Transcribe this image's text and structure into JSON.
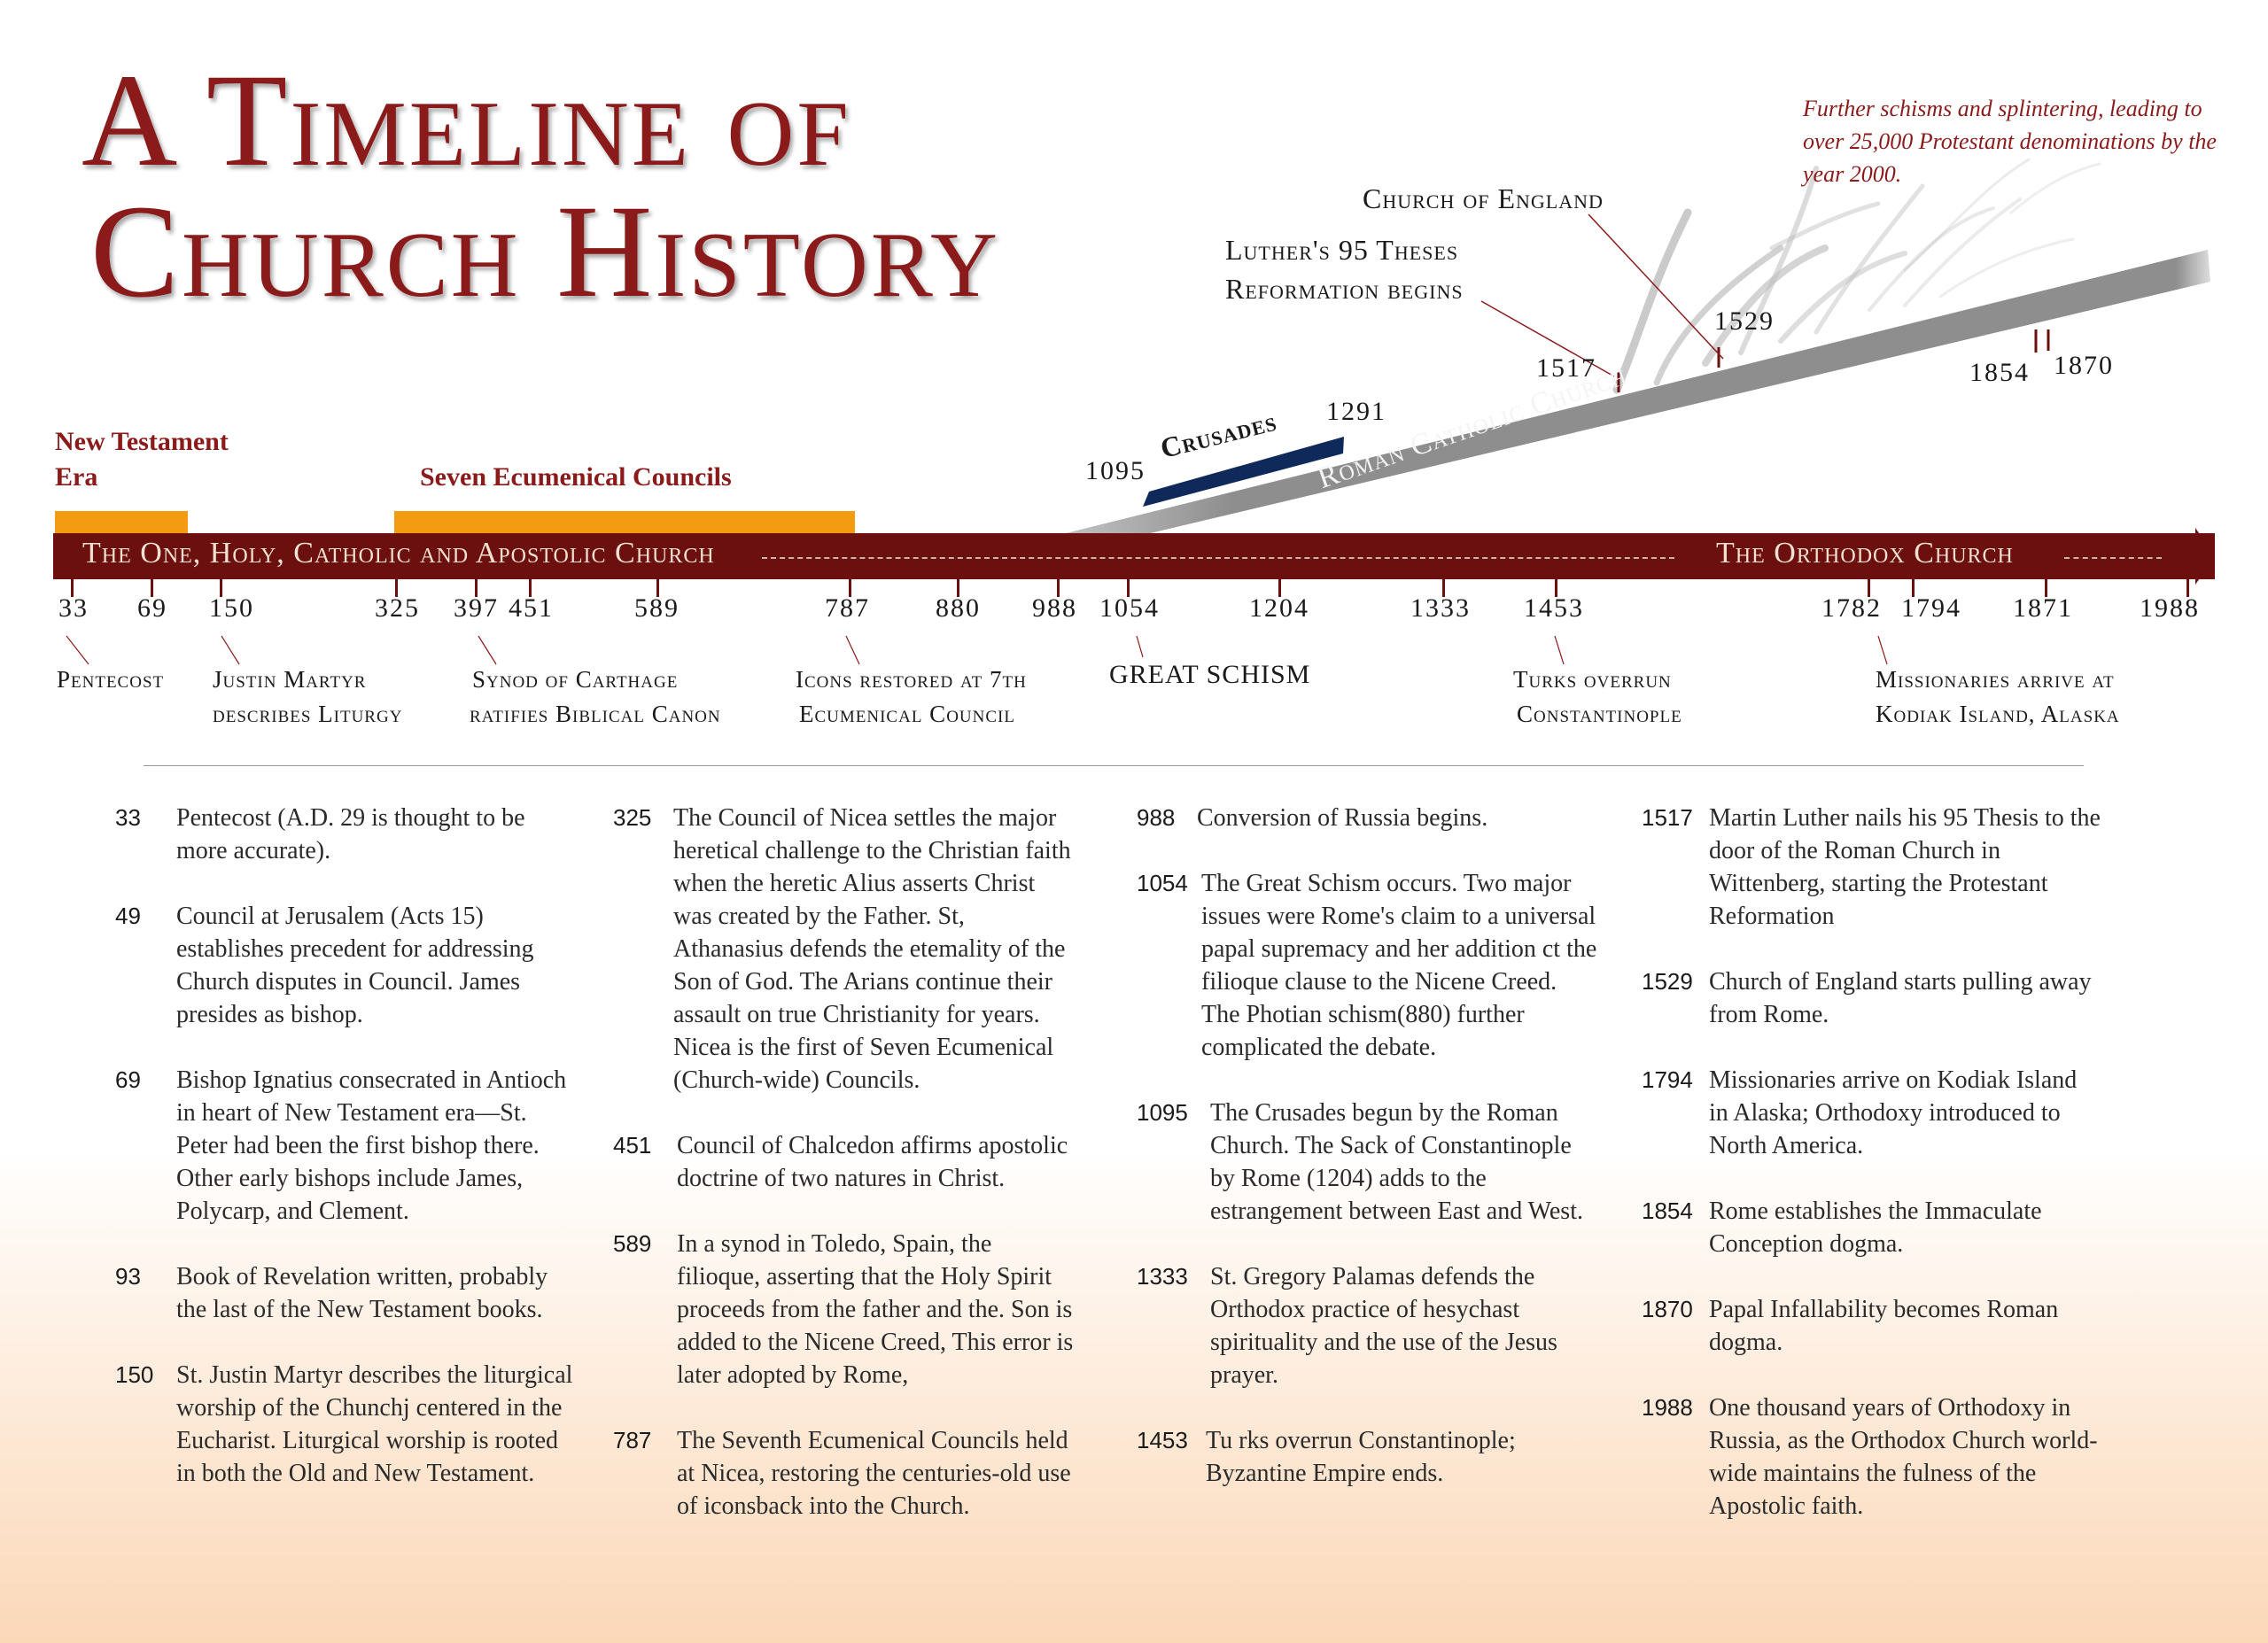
{
  "title": {
    "line1": "A Timeline of",
    "line2": "Church History"
  },
  "top_notes": {
    "further_schisms": "Further schisms and splintering, leading to over 25,000 Protestant denominations by the year 2000.",
    "church_of_england": "Church of England",
    "luther_line1": "Luther's 95 Theses",
    "luther_line2": "Reformation begins",
    "crusades": "Crusades",
    "roman_catholic": "Roman Catholic Church"
  },
  "upper_years": {
    "y1095": "1095",
    "y1291": "1291",
    "y1517": "1517",
    "y1529": "1529",
    "y1854": "1854",
    "y1870": "1870"
  },
  "eras": {
    "nt_line1": "New Testament",
    "nt_line2": "Era",
    "councils": "Seven Ecumenical Councils"
  },
  "main_bar": {
    "left_label": "The One, Holy, Catholic and Apostolic Church",
    "right_label": "The Orthodox Church"
  },
  "axis_years": [
    "33",
    "69",
    "150",
    "325",
    "397",
    "451",
    "589",
    "787",
    "880",
    "988",
    "1054",
    "1204",
    "1333",
    "1453",
    "1782",
    "1794",
    "1871",
    "1988"
  ],
  "events": {
    "pentecost": "Pentecost",
    "justin_1": "Justin Martyr",
    "justin_2": "describes Liturgy",
    "carthage_1": "Synod of Carthage",
    "carthage_2": "ratifies Biblical Canon",
    "icons_1": "Icons restored at 7th",
    "icons_2": "Ecumenical Council",
    "schism": "GREAT SCHISM",
    "turks_1": "Turks overrun",
    "turks_2": "Constantinople",
    "kodiak_1": "Missionaries arrive at",
    "kodiak_2": "Kodiak Island, Alaska"
  },
  "columns": [
    [
      {
        "year": "33",
        "text": "Pentecost (A.D. 29 is thought to be more accurate)."
      },
      {
        "year": "49",
        "text": "Council at Jerusalem (Acts 15) establishes precedent for addressing Church disputes in Council. James presides as bishop."
      },
      {
        "year": "69",
        "text": "Bishop Ignatius consecrated in Antioch in heart of New Testament era—St. Peter had been the first bishop there. Other early bishops include James, Polycarp, and Clement."
      },
      {
        "year": "93",
        "text": "Book of Revelation written, probably the last of the New Testament books."
      },
      {
        "year": "150",
        "text": "St. Justin Martyr describes the liturgical worship of the Chunchj centered in the Eucharist. Liturgical worship is rooted in both the Old and New Testament."
      }
    ],
    [
      {
        "year": "325",
        "text": "The Council of Nicea settles the major heretical challenge to the Christian faith when the heretic Alius asserts Christ was created by the Father. St, Athanasius defends the etemality of the Son of God. The Arians continue their assault on true Christianity for years. Nicea is the first of Seven Ecumenical (Church-wide) Councils."
      },
      {
        "year": "451",
        "text": "Council of Chalcedon affirms apostolic doctrine of two natures in Christ."
      },
      {
        "year": "589",
        "text": "In a synod in Toledo, Spain, the filioque, asserting that the Holy Spirit proceeds from the father and the. Son is added to the Nicene Creed, This error is later adopted by Rome,"
      },
      {
        "year": "787",
        "text": "The Seventh Ecumenical Councils held at Nicea, restoring the centuries-old use of iconsback into the Church."
      }
    ],
    [
      {
        "year": "988",
        "text": "Conversion of Russia begins."
      },
      {
        "year": "1054",
        "text": "The Great Schism occurs. Two major issues were Rome's claim to a universal papal supremacy and her addition ct the filioque clause to the Nicene Creed. The Photian schism(880) further complicated the debate."
      },
      {
        "year": "1095",
        "text": "The Crusades begun by the Roman Church. The Sack of Constantinople by Rome (1204) adds to the estrangement between East and West."
      },
      {
        "year": "1333",
        "text": "St. Gregory Palamas defends the Orthodox practice of hesychast spirituality and the use of the Jesus prayer."
      },
      {
        "year": "1453",
        "text": "Tu rks overrun Constantinople; Byzantine Empire ends."
      }
    ],
    [
      {
        "year": "1517",
        "text": "Martin Luther nails his 95 Thesis to the door of the Roman Church in Wittenberg, starting the Protestant Reformation"
      },
      {
        "year": "1529",
        "text": "Church of England starts pulling away from Rome."
      },
      {
        "year": "1794",
        "text": "Missionaries arrive on Kodiak Island in Alaska; Orthodoxy introduced to North America."
      },
      {
        "year": "1854",
        "text": "Rome establishes the Immaculate Conception dogma."
      },
      {
        "year": "1870",
        "text": "Papal Infallability becomes Roman dogma."
      },
      {
        "year": "1988",
        "text": "One thousand years of Orthodoxy in Russia, as the Orthodox Church world-wide maintains the fulness of the Apostolic faith."
      }
    ]
  ],
  "colors": {
    "title_red": "#8b1a1a",
    "main_bar": "#6b0f0f",
    "era_orange": "#f39c12",
    "crusades_blue": "#0f2a5a",
    "rcc_gray": "#8e8e8e"
  }
}
